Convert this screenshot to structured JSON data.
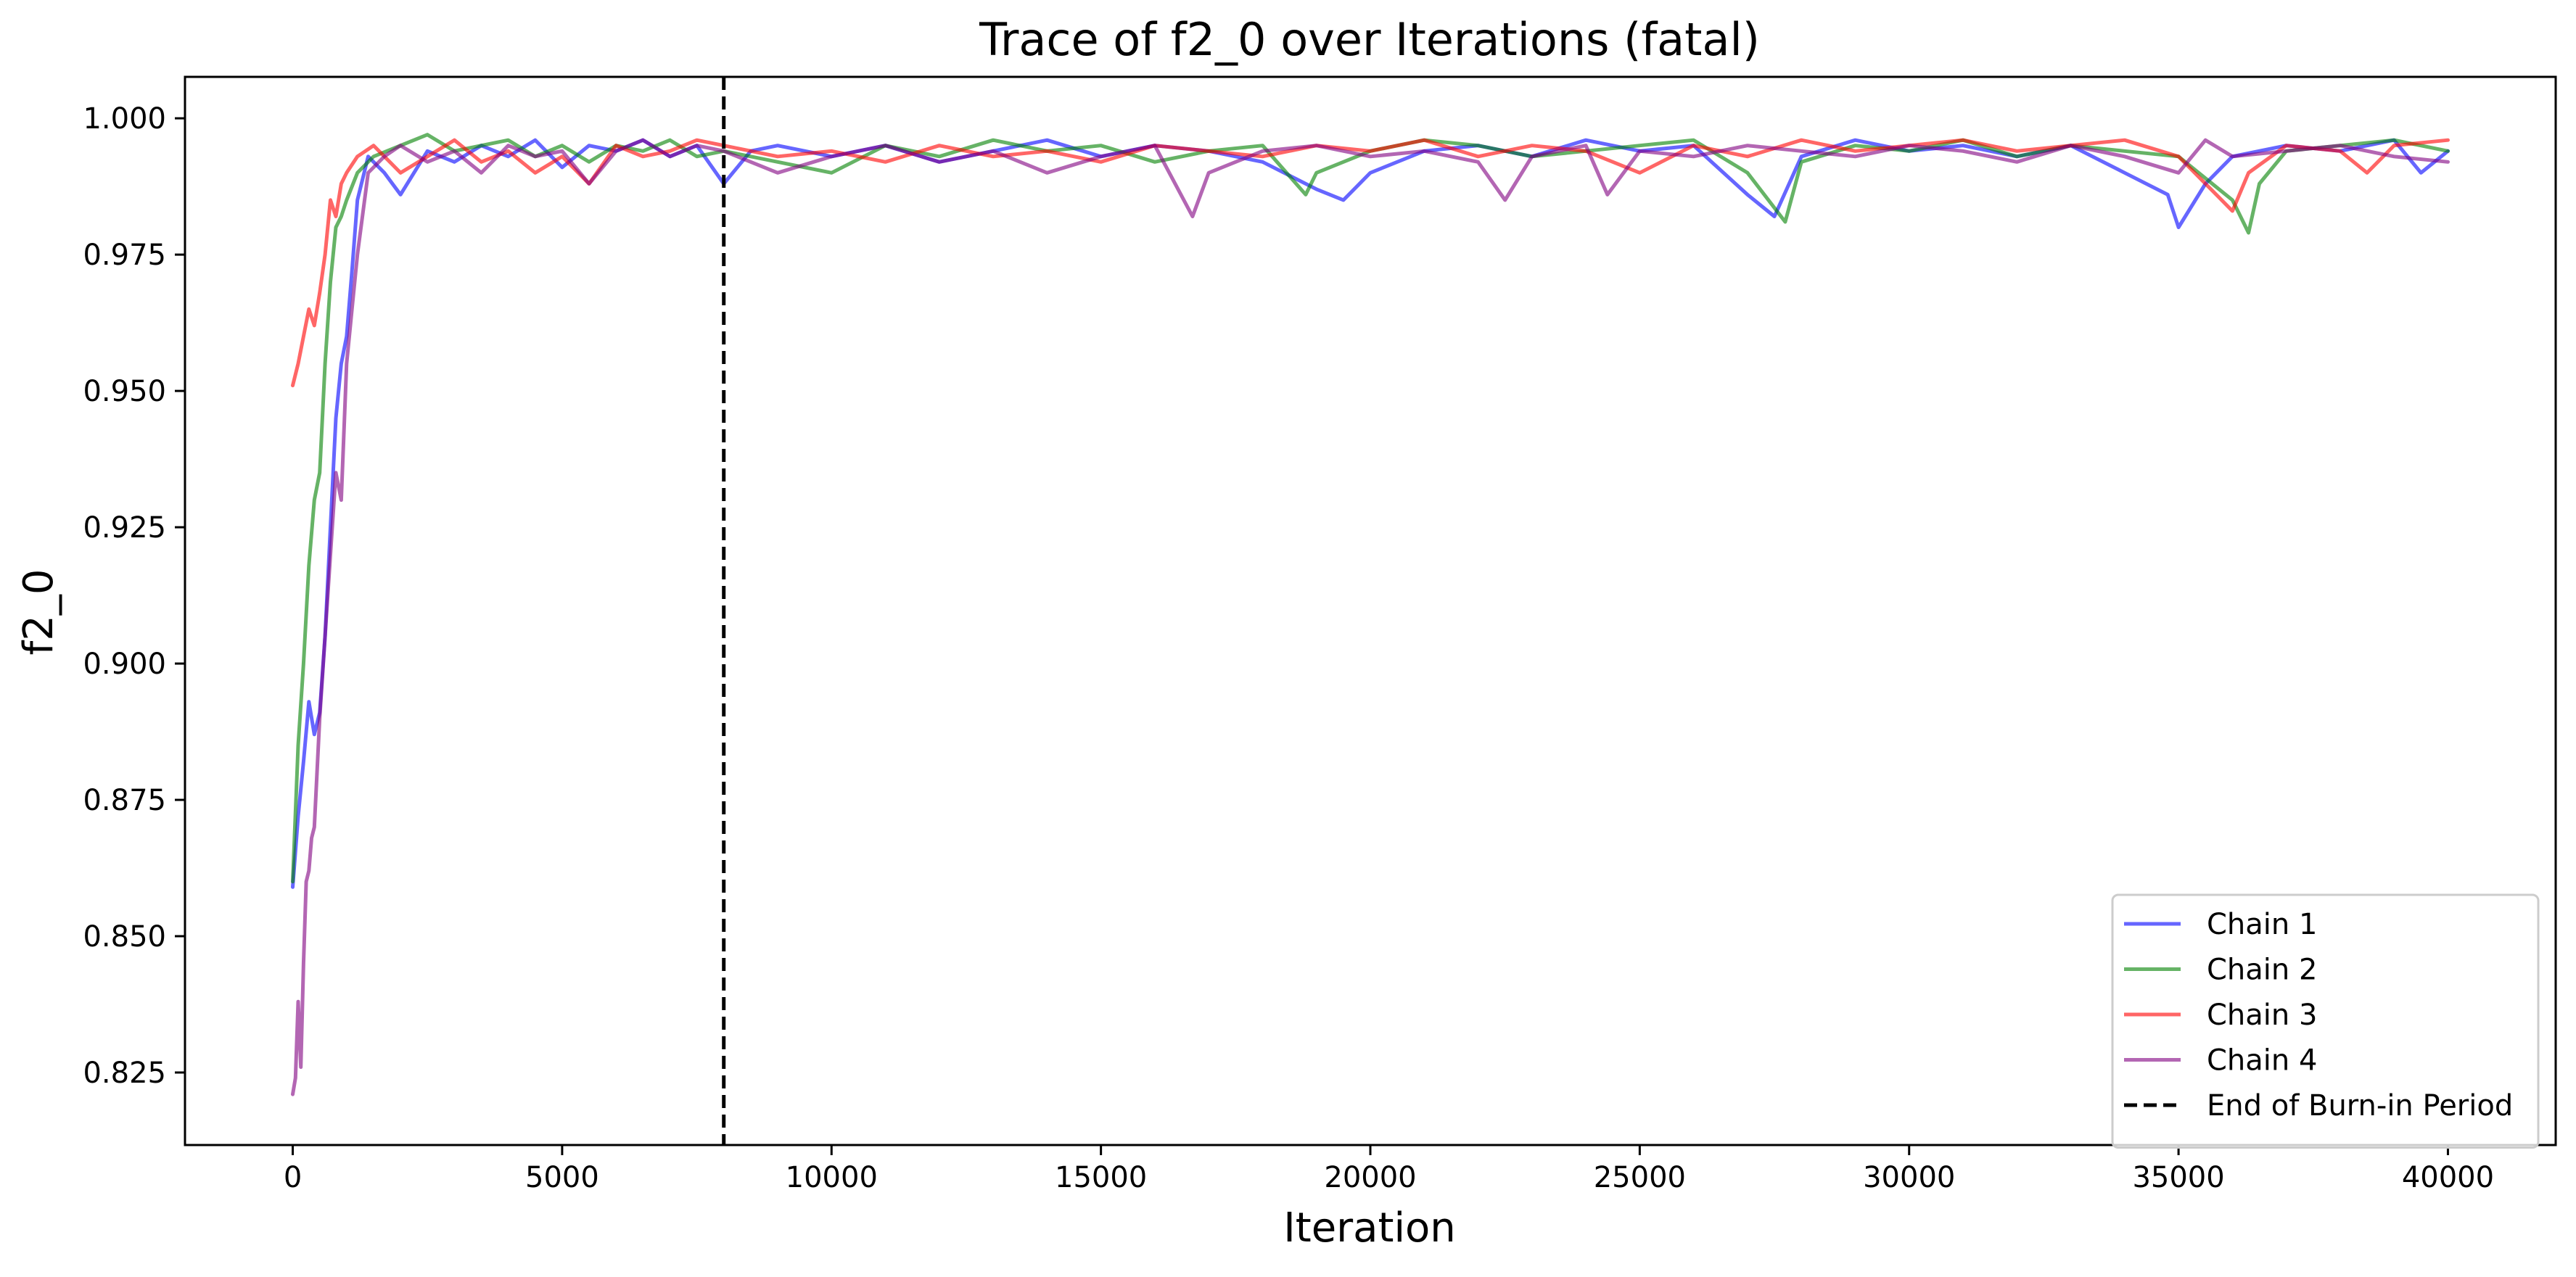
{
  "chart_data": {
    "type": "line",
    "title": "Trace of f2_0 over Iterations (fatal)",
    "xlabel": "Iteration",
    "ylabel": "f2_0",
    "xlim": [
      -2000,
      42000
    ],
    "ylim": [
      0.8117,
      1.0076
    ],
    "xticks": [
      0,
      5000,
      10000,
      15000,
      20000,
      25000,
      30000,
      35000,
      40000
    ],
    "yticks": [
      0.825,
      0.85,
      0.875,
      0.9,
      0.925,
      0.95,
      0.975,
      1.0
    ],
    "ytick_labels": [
      "0.825",
      "0.850",
      "0.875",
      "0.900",
      "0.925",
      "0.950",
      "0.975",
      "1.000"
    ],
    "grid": false,
    "legend_position": "lower right",
    "burn_in": {
      "x": 8000,
      "label": "End of Burn-in Period",
      "color": "#000000",
      "style": "dashed"
    },
    "series": [
      {
        "name": "Chain 1",
        "color": "#0000ff",
        "opacity": 0.6,
        "x": [
          0,
          100,
          200,
          300,
          400,
          500,
          600,
          700,
          800,
          900,
          1000,
          1100,
          1200,
          1400,
          1700,
          2000,
          2500,
          3000,
          3500,
          4000,
          4500,
          5000,
          5500,
          6000,
          6500,
          7000,
          7500,
          8000,
          8500,
          9000,
          10000,
          11000,
          12000,
          13000,
          14000,
          15000,
          16000,
          17000,
          18000,
          19000,
          19500,
          20000,
          21000,
          22000,
          23000,
          24000,
          25000,
          26000,
          27000,
          27500,
          28000,
          29000,
          30000,
          31000,
          32000,
          33000,
          34000,
          34800,
          35000,
          35500,
          36000,
          37000,
          38000,
          39000,
          39500,
          40000
        ],
        "y": [
          0.859,
          0.872,
          0.882,
          0.893,
          0.887,
          0.891,
          0.905,
          0.925,
          0.945,
          0.955,
          0.96,
          0.972,
          0.985,
          0.993,
          0.99,
          0.986,
          0.994,
          0.992,
          0.995,
          0.993,
          0.996,
          0.991,
          0.995,
          0.994,
          0.996,
          0.993,
          0.995,
          0.988,
          0.994,
          0.995,
          0.993,
          0.995,
          0.992,
          0.994,
          0.996,
          0.993,
          0.995,
          0.994,
          0.992,
          0.987,
          0.985,
          0.99,
          0.994,
          0.995,
          0.993,
          0.996,
          0.994,
          0.995,
          0.986,
          0.982,
          0.993,
          0.996,
          0.994,
          0.995,
          0.993,
          0.995,
          0.99,
          0.986,
          0.98,
          0.988,
          0.993,
          0.995,
          0.994,
          0.996,
          0.99,
          0.994
        ]
      },
      {
        "name": "Chain 2",
        "color": "#008000",
        "opacity": 0.6,
        "x": [
          0,
          100,
          200,
          300,
          400,
          500,
          600,
          700,
          800,
          900,
          1000,
          1200,
          1500,
          2000,
          2500,
          3000,
          3500,
          4000,
          4500,
          5000,
          5500,
          6000,
          6500,
          7000,
          7500,
          8000,
          9000,
          10000,
          11000,
          12000,
          13000,
          14000,
          15000,
          16000,
          17000,
          18000,
          18800,
          19000,
          20000,
          21000,
          22000,
          23000,
          24000,
          25000,
          26000,
          27000,
          27700,
          28000,
          29000,
          30000,
          31000,
          32000,
          33000,
          34000,
          35000,
          36000,
          36300,
          36500,
          37000,
          38000,
          39000,
          40000
        ],
        "y": [
          0.86,
          0.885,
          0.9,
          0.918,
          0.93,
          0.935,
          0.955,
          0.97,
          0.98,
          0.982,
          0.985,
          0.99,
          0.993,
          0.995,
          0.997,
          0.994,
          0.995,
          0.996,
          0.993,
          0.995,
          0.992,
          0.995,
          0.994,
          0.996,
          0.993,
          0.994,
          0.992,
          0.99,
          0.995,
          0.993,
          0.996,
          0.994,
          0.995,
          0.992,
          0.994,
          0.995,
          0.986,
          0.99,
          0.994,
          0.996,
          0.995,
          0.993,
          0.994,
          0.995,
          0.996,
          0.99,
          0.981,
          0.992,
          0.995,
          0.994,
          0.996,
          0.993,
          0.995,
          0.994,
          0.993,
          0.985,
          0.979,
          0.988,
          0.994,
          0.995,
          0.996,
          0.994
        ]
      },
      {
        "name": "Chain 3",
        "color": "#ff0000",
        "opacity": 0.6,
        "x": [
          0,
          100,
          200,
          300,
          400,
          500,
          600,
          700,
          800,
          900,
          1000,
          1200,
          1500,
          2000,
          2500,
          3000,
          3500,
          4000,
          4500,
          5000,
          5500,
          6000,
          6500,
          7000,
          7500,
          8000,
          9000,
          10000,
          11000,
          12000,
          13000,
          14000,
          15000,
          16000,
          17000,
          18000,
          19000,
          20000,
          21000,
          22000,
          23000,
          24000,
          25000,
          26000,
          27000,
          28000,
          29000,
          30000,
          31000,
          32000,
          33000,
          34000,
          35000,
          35800,
          36000,
          36300,
          37000,
          38000,
          38500,
          39000,
          40000
        ],
        "y": [
          0.951,
          0.955,
          0.96,
          0.965,
          0.962,
          0.968,
          0.975,
          0.985,
          0.982,
          0.988,
          0.99,
          0.993,
          0.995,
          0.99,
          0.993,
          0.996,
          0.992,
          0.994,
          0.99,
          0.993,
          0.988,
          0.995,
          0.993,
          0.994,
          0.996,
          0.995,
          0.993,
          0.994,
          0.992,
          0.995,
          0.993,
          0.994,
          0.992,
          0.995,
          0.994,
          0.993,
          0.995,
          0.994,
          0.996,
          0.993,
          0.995,
          0.994,
          0.99,
          0.995,
          0.993,
          0.996,
          0.994,
          0.995,
          0.996,
          0.994,
          0.995,
          0.996,
          0.993,
          0.985,
          0.983,
          0.99,
          0.995,
          0.994,
          0.99,
          0.995,
          0.996
        ]
      },
      {
        "name": "Chain 4",
        "color": "#800080",
        "opacity": 0.6,
        "x": [
          0,
          50,
          100,
          150,
          200,
          250,
          300,
          350,
          400,
          500,
          600,
          700,
          800,
          900,
          1000,
          1100,
          1200,
          1400,
          1700,
          2000,
          2500,
          3000,
          3500,
          4000,
          4500,
          5000,
          5500,
          6000,
          6500,
          7000,
          7500,
          8000,
          9000,
          10000,
          11000,
          12000,
          13000,
          14000,
          15000,
          16000,
          16700,
          17000,
          18000,
          19000,
          20000,
          21000,
          22000,
          22500,
          23000,
          24000,
          24400,
          25000,
          26000,
          27000,
          28000,
          29000,
          30000,
          31000,
          32000,
          33000,
          34000,
          35000,
          35500,
          36000,
          37000,
          38000,
          39000,
          40000
        ],
        "y": [
          0.821,
          0.824,
          0.838,
          0.826,
          0.845,
          0.86,
          0.862,
          0.868,
          0.87,
          0.89,
          0.905,
          0.92,
          0.935,
          0.93,
          0.955,
          0.965,
          0.975,
          0.99,
          0.993,
          0.995,
          0.992,
          0.994,
          0.99,
          0.995,
          0.993,
          0.994,
          0.988,
          0.994,
          0.996,
          0.993,
          0.995,
          0.994,
          0.99,
          0.993,
          0.995,
          0.992,
          0.994,
          0.99,
          0.993,
          0.995,
          0.982,
          0.99,
          0.994,
          0.995,
          0.993,
          0.994,
          0.992,
          0.985,
          0.993,
          0.995,
          0.986,
          0.994,
          0.993,
          0.995,
          0.994,
          0.993,
          0.995,
          0.994,
          0.992,
          0.995,
          0.993,
          0.99,
          0.996,
          0.993,
          0.994,
          0.995,
          0.993,
          0.992
        ]
      }
    ]
  }
}
